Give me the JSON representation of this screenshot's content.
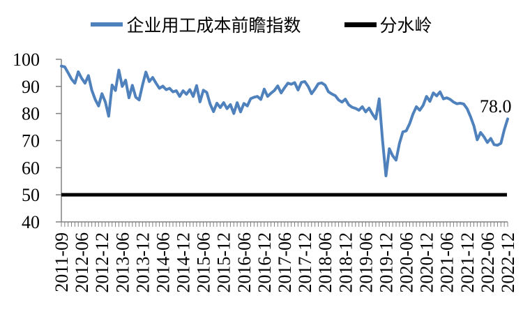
{
  "chart_data": {
    "type": "line",
    "title": "",
    "xlabel": "",
    "ylabel": "",
    "ylim": [
      40,
      100
    ],
    "yticks": [
      40,
      50,
      60,
      70,
      80,
      90,
      100
    ],
    "grid": false,
    "legend_position": "top",
    "axis_color": "#808080",
    "x_label_rotation": -90,
    "label_every": 6,
    "x_labels": [
      "2011-09",
      "2012-06",
      "2012-12",
      "2013-06",
      "2013-12",
      "2014-06",
      "2014-12",
      "2015-06",
      "2015-12",
      "2016-06",
      "2016-12",
      "2017-06",
      "2017-12",
      "2018-06",
      "2018-12",
      "2019-06",
      "2019-12",
      "2020-06",
      "2020-12",
      "2021-06",
      "2021-12",
      "2022-06",
      "2022-12"
    ],
    "series": [
      {
        "name": "企业用工成本前瞻指数",
        "color": "#4F81BD",
        "width": 4,
        "values": [
          97.5,
          97.2,
          95.0,
          92.7,
          91.2,
          95.4,
          93.0,
          91.2,
          94.0,
          88.6,
          85.2,
          82.8,
          87.3,
          84.3,
          79.0,
          90.5,
          88.5,
          96.0,
          90.0,
          92.3,
          85.8,
          90.4,
          86.0,
          85.0,
          90.5,
          95.3,
          91.8,
          93.3,
          91.2,
          89.3,
          90.1,
          88.8,
          89.3,
          88.0,
          88.4,
          86.3,
          88.4,
          87.1,
          88.8,
          86.3,
          90.3,
          84.3,
          88.6,
          87.8,
          83.5,
          80.7,
          83.8,
          82.2,
          84.0,
          81.8,
          83.3,
          80.0,
          84.0,
          80.6,
          83.7,
          82.8,
          85.5,
          86.0,
          86.3,
          85.2,
          89.0,
          86.3,
          87.5,
          88.5,
          90.2,
          87.6,
          89.5,
          91.2,
          90.8,
          91.4,
          88.7,
          91.5,
          91.8,
          90.0,
          87.3,
          89.0,
          91.0,
          91.3,
          90.5,
          88.0,
          87.2,
          86.6,
          85.0,
          84.2,
          85.3,
          83.2,
          82.3,
          81.9,
          81.2,
          82.5,
          80.6,
          82.0,
          79.8,
          78.0,
          85.4,
          70.0,
          57.0,
          67.0,
          64.4,
          62.8,
          69.0,
          73.2,
          73.6,
          76.2,
          79.8,
          82.5,
          81.2,
          83.0,
          86.3,
          84.5,
          87.6,
          86.5,
          88.0,
          85.4,
          85.8,
          85.2,
          84.2,
          83.6,
          83.8,
          83.5,
          81.8,
          78.9,
          75.5,
          70.3,
          73.0,
          71.4,
          69.3,
          70.8,
          68.5,
          68.3,
          69.0,
          74.0,
          78.0
        ]
      },
      {
        "name": "分水岭",
        "color": "#000000",
        "width": 5,
        "constant": 50
      }
    ],
    "data_label": {
      "text": "78.0",
      "point_index": 132
    }
  }
}
